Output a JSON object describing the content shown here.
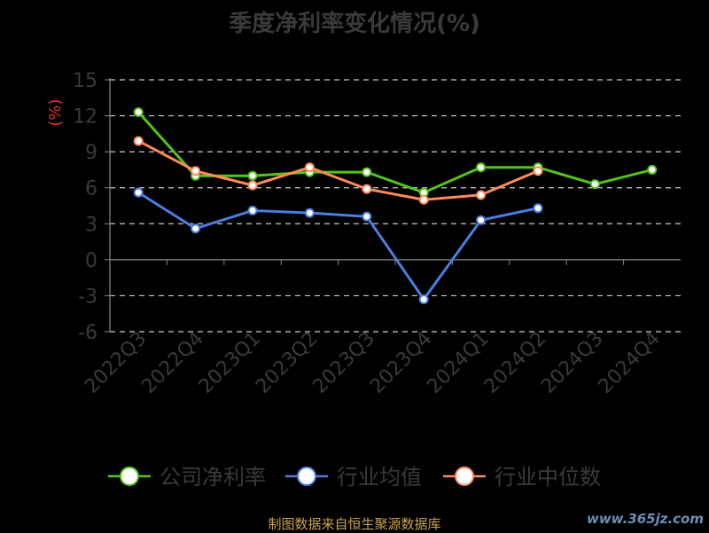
{
  "chart_data": {
    "type": "line",
    "title": "季度净利率变化情况(%)",
    "ylabel": "(%)",
    "xlabel": "",
    "categories": [
      "2022Q3",
      "2022Q4",
      "2023Q1",
      "2023Q2",
      "2023Q3",
      "2023Q4",
      "2024Q1",
      "2024Q2",
      "2024Q3",
      "2024Q4"
    ],
    "yticks": [
      15,
      12,
      9,
      6,
      3,
      0,
      -3,
      -6
    ],
    "ylim": [
      -6,
      15
    ],
    "grid": true,
    "legend_position": "bottom",
    "series": [
      {
        "name": "公司净利率",
        "color": "#52c41a",
        "values": [
          12.3,
          7.0,
          7.0,
          7.3,
          7.3,
          5.6,
          7.7,
          7.7,
          6.3,
          7.5
        ]
      },
      {
        "name": "行业均值",
        "color": "#4a7ee0",
        "values": [
          5.6,
          2.6,
          4.1,
          3.9,
          3.6,
          -3.3,
          3.3,
          4.3,
          null,
          null
        ]
      },
      {
        "name": "行业中位数",
        "color": "#ff8a5c",
        "values": [
          9.9,
          7.4,
          6.2,
          7.7,
          5.9,
          5.0,
          5.4,
          7.4,
          null,
          null
        ]
      }
    ]
  },
  "source_text": "制图数据来自恒生聚源数据库",
  "watermark": "www.365jz.com"
}
